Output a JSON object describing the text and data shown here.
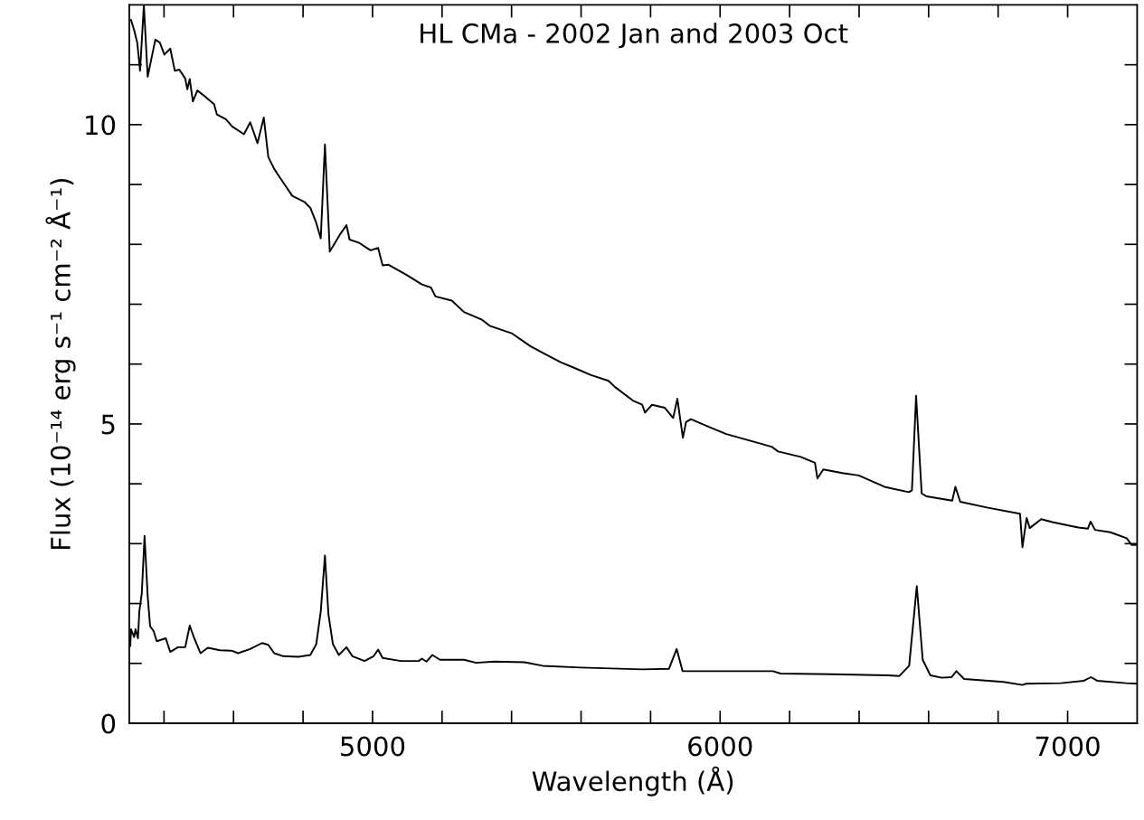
{
  "chart_data": {
    "type": "line",
    "title": "HL CMa - 2002 Jan and 2003 Oct",
    "xlabel": "Wavelength (Å)",
    "ylabel": "Flux (10⁻¹⁴ erg s⁻¹ cm⁻² Å⁻¹)",
    "xlim": [
      4300,
      7200
    ],
    "ylim": [
      0,
      12
    ],
    "xticks": [
      {
        "value": 4400,
        "label": null
      },
      {
        "value": 4600,
        "label": null
      },
      {
        "value": 4800,
        "label": null
      },
      5000,
      {
        "value": 5200,
        "label": null
      },
      {
        "value": 5400,
        "label": null
      },
      {
        "value": 5600,
        "label": null
      },
      {
        "value": 5800,
        "label": null
      },
      6000,
      {
        "value": 6200,
        "label": null
      },
      {
        "value": 6400,
        "label": null
      },
      {
        "value": 6600,
        "label": null
      },
      {
        "value": 6800,
        "label": null
      },
      7000
    ],
    "yticks": [
      0,
      {
        "value": 1,
        "label": null
      },
      {
        "value": 2,
        "label": null
      },
      {
        "value": 3,
        "label": null
      },
      {
        "value": 4,
        "label": null
      },
      5,
      {
        "value": 6,
        "label": null
      },
      {
        "value": 7,
        "label": null
      },
      {
        "value": 8,
        "label": null
      },
      {
        "value": 9,
        "label": null
      },
      10,
      {
        "value": 11,
        "label": null
      }
    ],
    "grid": false,
    "legend": false,
    "marker": "none",
    "line_style": "solid",
    "series": [
      {
        "color": "#000000",
        "x": [
          4305,
          4314,
          4323,
          4331,
          4342,
          4353,
          4375,
          4388,
          4401,
          4418,
          4431,
          4444,
          4461,
          4467,
          4474,
          4483,
          4496,
          4518,
          4544,
          4552,
          4578,
          4596,
          4630,
          4648,
          4669,
          4687,
          4700,
          4717,
          4734,
          4769,
          4804,
          4821,
          4838,
          4851,
          4863,
          4877,
          4908,
          4925,
          4934,
          4960,
          4994,
          5016,
          5029,
          5046,
          5098,
          5142,
          5168,
          5181,
          5228,
          5263,
          5315,
          5337,
          5402,
          5454,
          5489,
          5541,
          5575,
          5627,
          5679,
          5697,
          5749,
          5776,
          5784,
          5804,
          5841,
          5865,
          5877,
          5893,
          5902,
          5916,
          5972,
          6018,
          6074,
          6148,
          6167,
          6232,
          6273,
          6280,
          6297,
          6352,
          6399,
          6473,
          6543,
          6552,
          6564,
          6580,
          6594,
          6668,
          6677,
          6691,
          6771,
          6863,
          6870,
          6882,
          6891,
          6924,
          6956,
          7031,
          7058,
          7066,
          7079,
          7123,
          7170,
          7184,
          7197
        ],
        "values": [
          11.75,
          11.58,
          11.37,
          10.9,
          12.0,
          10.8,
          11.42,
          11.37,
          11.17,
          11.27,
          10.9,
          10.92,
          10.77,
          10.59,
          10.76,
          10.39,
          10.57,
          10.47,
          10.34,
          10.17,
          10.09,
          9.97,
          9.84,
          10.04,
          9.69,
          10.12,
          9.46,
          9.26,
          9.11,
          8.81,
          8.71,
          8.61,
          8.36,
          8.1,
          9.67,
          7.88,
          8.18,
          8.32,
          8.08,
          8.03,
          7.9,
          7.94,
          7.65,
          7.66,
          7.49,
          7.33,
          7.28,
          7.13,
          7.06,
          6.87,
          6.74,
          6.64,
          6.51,
          6.3,
          6.19,
          6.03,
          5.95,
          5.82,
          5.72,
          5.62,
          5.39,
          5.32,
          5.19,
          5.32,
          5.27,
          5.1,
          5.42,
          4.77,
          5.03,
          5.08,
          4.94,
          4.83,
          4.74,
          4.62,
          4.54,
          4.45,
          4.35,
          4.09,
          4.24,
          4.18,
          4.14,
          3.95,
          3.86,
          3.89,
          5.47,
          3.84,
          3.79,
          3.72,
          3.95,
          3.7,
          3.6,
          3.5,
          2.94,
          3.43,
          3.26,
          3.41,
          3.36,
          3.27,
          3.25,
          3.37,
          3.23,
          3.19,
          3.09,
          2.98,
          2.98
        ]
      },
      {
        "color": "#000000",
        "x": [
          4303,
          4305,
          4314,
          4318,
          4325,
          4329,
          4336,
          4344,
          4353,
          4360,
          4370,
          4379,
          4405,
          4418,
          4440,
          4461,
          4474,
          4487,
          4505,
          4526,
          4561,
          4596,
          4613,
          4648,
          4682,
          4700,
          4717,
          4743,
          4786,
          4821,
          4838,
          4851,
          4863,
          4873,
          4886,
          4903,
          4925,
          4942,
          4977,
          5003,
          5016,
          5029,
          5081,
          5133,
          5142,
          5155,
          5172,
          5194,
          5263,
          5298,
          5350,
          5437,
          5489,
          5599,
          5776,
          5853,
          5875,
          5892,
          5986,
          6152,
          6174,
          6317,
          6483,
          6516,
          6544,
          6566,
          6583,
          6605,
          6638,
          6666,
          6680,
          6702,
          6815,
          6870,
          6881,
          6981,
          7047,
          7067,
          7085,
          7168,
          7200
        ],
        "values": [
          1.29,
          1.57,
          1.44,
          1.57,
          1.42,
          1.87,
          2.17,
          3.13,
          2.12,
          1.62,
          1.54,
          1.37,
          1.42,
          1.19,
          1.27,
          1.27,
          1.63,
          1.42,
          1.17,
          1.26,
          1.22,
          1.21,
          1.17,
          1.24,
          1.34,
          1.31,
          1.17,
          1.12,
          1.11,
          1.14,
          1.32,
          1.87,
          2.8,
          1.82,
          1.32,
          1.14,
          1.27,
          1.12,
          1.04,
          1.12,
          1.23,
          1.09,
          1.04,
          1.04,
          1.08,
          1.03,
          1.14,
          1.06,
          1.06,
          1.01,
          1.03,
          1.02,
          0.96,
          0.93,
          0.9,
          0.91,
          1.24,
          0.87,
          0.87,
          0.87,
          0.83,
          0.82,
          0.8,
          0.79,
          0.96,
          2.29,
          1.06,
          0.8,
          0.76,
          0.77,
          0.87,
          0.74,
          0.69,
          0.64,
          0.66,
          0.67,
          0.71,
          0.77,
          0.71,
          0.67,
          0.66
        ]
      }
    ]
  }
}
